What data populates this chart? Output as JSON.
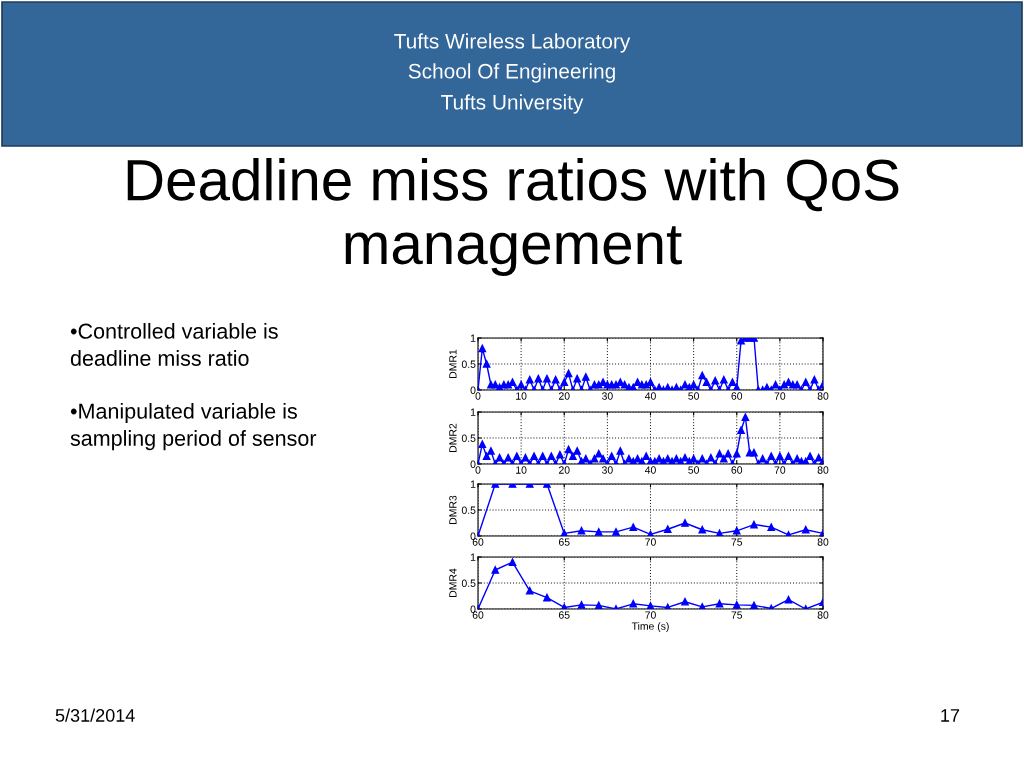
{
  "chart_data": [
    {
      "type": "line",
      "title": "Deadline miss ratios with QoS management",
      "annotations": [
        "Tufts Wireless Laboratory",
        "School Of Engineering",
        "Tufts University",
        "•Controlled variable is\ndeadline miss ratio",
        "•Manipulated variable is\nsampling period of sensor",
        "5/31/2014",
        "17"
      ],
      "ylabel": "DMR1",
      "x": [
        0,
        1,
        2,
        3,
        4,
        5,
        6,
        7,
        8,
        9,
        10,
        11,
        12,
        13,
        14,
        15,
        16,
        17,
        18,
        19,
        20,
        21,
        22,
        23,
        24,
        25,
        26,
        27,
        28,
        29,
        30,
        31,
        32,
        33,
        34,
        35,
        36,
        37,
        38,
        39,
        40,
        41,
        42,
        43,
        44,
        45,
        46,
        47,
        48,
        49,
        50,
        51,
        52,
        53,
        54,
        55,
        56,
        57,
        58,
        59,
        60,
        61,
        62,
        63,
        64,
        65,
        66,
        67,
        68,
        69,
        70,
        71,
        72,
        73,
        74,
        75,
        76,
        77,
        78,
        79,
        80
      ],
      "series": [
        {
          "color": "#0000ff",
          "values": [
            0,
            0.8,
            0.5,
            0.1,
            0.1,
            0.05,
            0.1,
            0.1,
            0.15,
            0,
            0.1,
            0,
            0.2,
            0,
            0.22,
            0,
            0.22,
            0,
            0.2,
            0,
            0.15,
            0.32,
            0,
            0.22,
            0,
            0.25,
            0,
            0.1,
            0.1,
            0.15,
            0.1,
            0.1,
            0.1,
            0.15,
            0.1,
            0.05,
            0.05,
            0.15,
            0.1,
            0.1,
            0.15,
            0,
            0.05,
            0,
            0.05,
            0,
            0.05,
            0,
            0.1,
            0.05,
            0.1,
            0,
            0.28,
            0.15,
            0,
            0.18,
            0,
            0.2,
            0,
            0.15,
            0.05,
            0.95,
            1,
            1,
            1,
            0,
            0,
            0.05,
            0,
            0.1,
            0,
            0.1,
            0.15,
            0.1,
            0.1,
            0,
            0.15,
            0,
            0.2,
            0,
            0.1
          ]
        }
      ],
      "xlim": [
        0,
        80
      ],
      "xticks": [
        0,
        10,
        20,
        30,
        40,
        50,
        60,
        70,
        80
      ],
      "ylim": [
        0,
        1
      ],
      "yticks": [
        0,
        0.5,
        1
      ],
      "grid": true,
      "marker": "triangle",
      "line_style": "solid"
    },
    {
      "type": "line",
      "ylabel": "DMR2",
      "x": [
        0,
        1,
        2,
        3,
        4,
        5,
        6,
        7,
        8,
        9,
        10,
        11,
        12,
        13,
        14,
        15,
        16,
        17,
        18,
        19,
        20,
        21,
        22,
        23,
        24,
        25,
        26,
        27,
        28,
        29,
        30,
        31,
        32,
        33,
        34,
        35,
        36,
        37,
        38,
        39,
        40,
        41,
        42,
        43,
        44,
        45,
        46,
        47,
        48,
        49,
        50,
        51,
        52,
        53,
        54,
        55,
        56,
        57,
        58,
        59,
        60,
        61,
        62,
        63,
        64,
        65,
        66,
        67,
        68,
        69,
        70,
        71,
        72,
        73,
        74,
        75,
        76,
        77,
        78,
        79,
        80
      ],
      "series": [
        {
          "color": "#0000ff",
          "values": [
            0,
            0.38,
            0.15,
            0.25,
            0,
            0.12,
            0,
            0.12,
            0,
            0.15,
            0,
            0.12,
            0,
            0.15,
            0,
            0.15,
            0,
            0.15,
            0,
            0.18,
            0,
            0.28,
            0.15,
            0.25,
            0.05,
            0.1,
            0,
            0.1,
            0.2,
            0.1,
            0,
            0.15,
            0,
            0.25,
            0,
            0.1,
            0.05,
            0.1,
            0.05,
            0.15,
            0.05,
            0.05,
            0.1,
            0.05,
            0.1,
            0.05,
            0.1,
            0.05,
            0.12,
            0.05,
            0.1,
            0,
            0.1,
            0,
            0.12,
            0,
            0.2,
            0.1,
            0.2,
            0,
            0.2,
            0.65,
            0.9,
            0.22,
            0.22,
            0,
            0.1,
            0,
            0.15,
            0,
            0.15,
            0,
            0.15,
            0,
            0.1,
            0.05,
            0.05,
            0.15,
            0,
            0.12,
            0.05
          ]
        }
      ],
      "xlim": [
        0,
        80
      ],
      "xticks": [
        0,
        10,
        20,
        30,
        40,
        50,
        60,
        70,
        80
      ],
      "ylim": [
        0,
        1
      ],
      "yticks": [
        0,
        0.5,
        1
      ],
      "grid": true,
      "marker": "triangle",
      "line_style": "solid"
    },
    {
      "type": "line",
      "ylabel": "DMR3",
      "x": [
        60,
        61,
        62,
        63,
        64,
        65,
        66,
        67,
        68,
        69,
        70,
        71,
        72,
        73,
        74,
        75,
        76,
        77,
        78,
        79,
        80
      ],
      "series": [
        {
          "color": "#0000ff",
          "values": [
            0,
            1,
            1,
            1,
            1,
            0.05,
            0.1,
            0.08,
            0.08,
            0.17,
            0.03,
            0.13,
            0.25,
            0.12,
            0.05,
            0.1,
            0.22,
            0.17,
            0.02,
            0.12,
            0.05
          ]
        }
      ],
      "xlim": [
        60,
        80
      ],
      "xticks": [
        60,
        65,
        70,
        75,
        80
      ],
      "ylim": [
        0,
        1
      ],
      "yticks": [
        0,
        0.5,
        1
      ],
      "grid": true,
      "marker": "triangle",
      "line_style": "solid"
    },
    {
      "type": "line",
      "ylabel": "DMR4",
      "xlabel": "Time (s)",
      "x": [
        60,
        61,
        62,
        63,
        64,
        65,
        66,
        67,
        68,
        69,
        70,
        71,
        72,
        73,
        74,
        75,
        76,
        77,
        78,
        79,
        80
      ],
      "series": [
        {
          "color": "#0000ff",
          "values": [
            0,
            0.75,
            0.9,
            0.35,
            0.22,
            0.03,
            0.08,
            0.07,
            0,
            0.1,
            0.06,
            0.03,
            0.14,
            0.04,
            0.1,
            0.08,
            0.07,
            0.01,
            0.18,
            0,
            0.13
          ]
        }
      ],
      "xlim": [
        60,
        80
      ],
      "xticks": [
        60,
        65,
        70,
        75,
        80
      ],
      "ylim": [
        0,
        1
      ],
      "yticks": [
        0,
        0.5,
        1
      ],
      "grid": true,
      "marker": "triangle",
      "line_style": "solid"
    }
  ]
}
